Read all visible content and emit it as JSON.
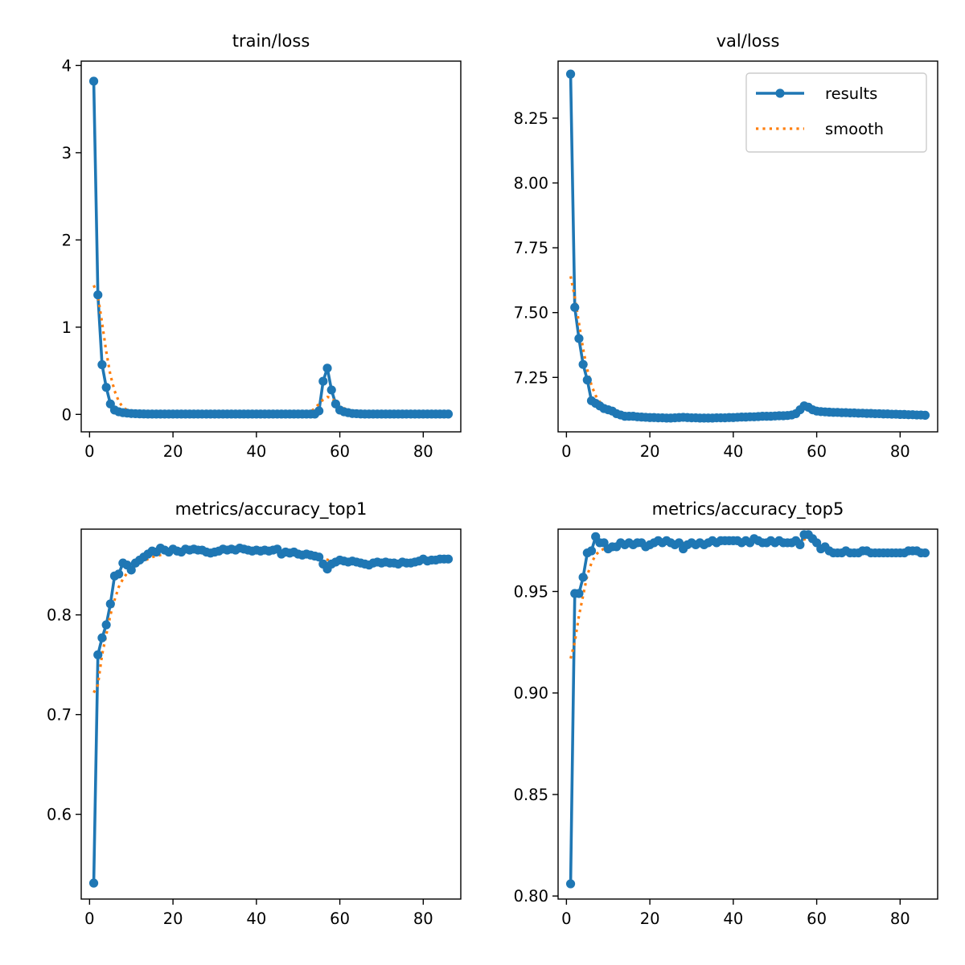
{
  "figure": {
    "background": "#ffffff"
  },
  "colors": {
    "results": "#1f77b4",
    "smooth": "#ff7f0e"
  },
  "legend": {
    "placement": "top-right",
    "panel": 1,
    "entries": [
      "results",
      "smooth"
    ]
  },
  "chart_data": [
    {
      "type": "line",
      "title": "train/loss",
      "xlabel": "",
      "ylabel": "",
      "xlim": [
        -2,
        89
      ],
      "ylim": [
        -0.2,
        4.05
      ],
      "xticks": [
        0,
        20,
        40,
        60,
        80
      ],
      "xtick_labels": [
        "0",
        "20",
        "40",
        "60",
        "80"
      ],
      "yticks": [
        0,
        1,
        2,
        3,
        4
      ],
      "ytick_labels": [
        "0",
        "1",
        "2",
        "3",
        "4"
      ],
      "grid": false,
      "series": [
        {
          "name": "results",
          "style": "line-markers",
          "x": [
            1,
            2,
            3,
            4,
            5,
            6,
            7,
            8,
            9,
            10,
            11,
            12,
            13,
            14,
            15,
            16,
            17,
            18,
            19,
            20,
            21,
            22,
            23,
            24,
            25,
            26,
            27,
            28,
            29,
            30,
            31,
            32,
            33,
            34,
            35,
            36,
            37,
            38,
            39,
            40,
            41,
            42,
            43,
            44,
            45,
            46,
            47,
            48,
            49,
            50,
            51,
            52,
            53,
            54,
            55,
            56,
            57,
            58,
            59,
            60,
            61,
            62,
            63,
            64,
            65,
            66,
            67,
            68,
            69,
            70,
            71,
            72,
            73,
            74,
            75,
            76,
            77,
            78,
            79,
            80,
            81,
            82,
            83,
            84,
            85,
            86
          ],
          "y": [
            3.82,
            1.37,
            0.57,
            0.31,
            0.12,
            0.05,
            0.03,
            0.02,
            0.015,
            0.01,
            0.008,
            0.006,
            0.005,
            0.004,
            0.004,
            0.004,
            0.004,
            0.004,
            0.004,
            0.004,
            0.004,
            0.004,
            0.004,
            0.004,
            0.004,
            0.004,
            0.004,
            0.004,
            0.004,
            0.004,
            0.004,
            0.004,
            0.004,
            0.004,
            0.004,
            0.004,
            0.004,
            0.004,
            0.004,
            0.004,
            0.004,
            0.004,
            0.004,
            0.004,
            0.004,
            0.004,
            0.004,
            0.004,
            0.004,
            0.004,
            0.004,
            0.004,
            0.004,
            0.004,
            0.04,
            0.38,
            0.53,
            0.28,
            0.12,
            0.05,
            0.03,
            0.02,
            0.01,
            0.008,
            0.005,
            0.004,
            0.004,
            0.004,
            0.004,
            0.004,
            0.004,
            0.004,
            0.004,
            0.004,
            0.004,
            0.004,
            0.004,
            0.004,
            0.004,
            0.004,
            0.004,
            0.004,
            0.004,
            0.004,
            0.004,
            0.004
          ]
        },
        {
          "name": "smooth",
          "style": "dotted",
          "x": [
            1,
            2,
            3,
            4,
            5,
            6,
            7,
            8,
            9,
            10,
            12,
            15,
            20,
            30,
            40,
            50,
            52,
            53,
            54,
            55,
            56,
            57,
            58,
            59,
            60,
            61,
            62,
            63,
            64,
            65,
            66,
            70,
            80,
            86
          ],
          "y": [
            1.48,
            1.36,
            1.05,
            0.72,
            0.45,
            0.27,
            0.15,
            0.08,
            0.05,
            0.03,
            0.015,
            0.008,
            0.005,
            0.004,
            0.004,
            0.004,
            0.01,
            0.03,
            0.07,
            0.12,
            0.17,
            0.2,
            0.19,
            0.14,
            0.1,
            0.07,
            0.05,
            0.03,
            0.02,
            0.015,
            0.01,
            0.006,
            0.004,
            0.004
          ]
        }
      ]
    },
    {
      "type": "line",
      "title": "val/loss",
      "xlabel": "",
      "ylabel": "",
      "xlim": [
        -2,
        89
      ],
      "ylim": [
        7.04,
        8.47
      ],
      "xticks": [
        0,
        20,
        40,
        60,
        80
      ],
      "xtick_labels": [
        "0",
        "20",
        "40",
        "60",
        "80"
      ],
      "yticks": [
        7.25,
        7.5,
        7.75,
        8.0,
        8.25
      ],
      "ytick_labels": [
        "7.25",
        "7.50",
        "7.75",
        "8.00",
        "8.25"
      ],
      "grid": false,
      "series": [
        {
          "name": "results",
          "style": "line-markers",
          "x": [
            1,
            2,
            3,
            4,
            5,
            6,
            7,
            8,
            9,
            10,
            11,
            12,
            13,
            14,
            15,
            16,
            17,
            18,
            19,
            20,
            21,
            22,
            23,
            24,
            25,
            26,
            27,
            28,
            29,
            30,
            31,
            32,
            33,
            34,
            35,
            36,
            37,
            38,
            39,
            40,
            41,
            42,
            43,
            44,
            45,
            46,
            47,
            48,
            49,
            50,
            51,
            52,
            53,
            54,
            55,
            56,
            57,
            58,
            59,
            60,
            61,
            62,
            63,
            64,
            65,
            66,
            67,
            68,
            69,
            70,
            71,
            72,
            73,
            74,
            75,
            76,
            77,
            78,
            79,
            80,
            81,
            82,
            83,
            84,
            85,
            86
          ],
          "y": [
            8.42,
            7.52,
            7.4,
            7.3,
            7.24,
            7.16,
            7.15,
            7.14,
            7.13,
            7.125,
            7.12,
            7.11,
            7.105,
            7.1,
            7.1,
            7.1,
            7.098,
            7.097,
            7.096,
            7.095,
            7.095,
            7.094,
            7.094,
            7.093,
            7.093,
            7.094,
            7.095,
            7.096,
            7.095,
            7.094,
            7.094,
            7.093,
            7.093,
            7.093,
            7.093,
            7.094,
            7.094,
            7.094,
            7.095,
            7.095,
            7.096,
            7.097,
            7.097,
            7.098,
            7.098,
            7.099,
            7.1,
            7.1,
            7.1,
            7.101,
            7.102,
            7.102,
            7.103,
            7.105,
            7.11,
            7.125,
            7.14,
            7.135,
            7.125,
            7.12,
            7.118,
            7.117,
            7.116,
            7.115,
            7.115,
            7.114,
            7.114,
            7.113,
            7.113,
            7.112,
            7.112,
            7.111,
            7.111,
            7.11,
            7.11,
            7.109,
            7.109,
            7.108,
            7.108,
            7.107,
            7.107,
            7.106,
            7.106,
            7.105,
            7.105,
            7.104
          ]
        },
        {
          "name": "smooth",
          "style": "dotted",
          "x": [
            1,
            2,
            3,
            4,
            5,
            6,
            7,
            8,
            9,
            10,
            12,
            15,
            20,
            30,
            40,
            50,
            54,
            56,
            57,
            58,
            60,
            62,
            66,
            70,
            80,
            86
          ],
          "y": [
            7.64,
            7.56,
            7.46,
            7.36,
            7.28,
            7.22,
            7.18,
            7.155,
            7.14,
            7.13,
            7.115,
            7.105,
            7.097,
            7.095,
            7.094,
            7.099,
            7.106,
            7.118,
            7.128,
            7.13,
            7.124,
            7.118,
            7.115,
            7.113,
            7.107,
            7.104
          ]
        }
      ]
    },
    {
      "type": "line",
      "title": "metrics/accuracy_top1",
      "xlabel": "",
      "ylabel": "",
      "xlim": [
        -2,
        89
      ],
      "ylim": [
        0.515,
        0.886
      ],
      "xticks": [
        0,
        20,
        40,
        60,
        80
      ],
      "xtick_labels": [
        "0",
        "20",
        "40",
        "60",
        "80"
      ],
      "yticks": [
        0.6,
        0.7,
        0.8
      ],
      "ytick_labels": [
        "0.6",
        "0.7",
        "0.8"
      ],
      "grid": false,
      "series": [
        {
          "name": "results",
          "style": "line-markers",
          "x": [
            1,
            2,
            3,
            4,
            5,
            6,
            7,
            8,
            9,
            10,
            11,
            12,
            13,
            14,
            15,
            16,
            17,
            18,
            19,
            20,
            21,
            22,
            23,
            24,
            25,
            26,
            27,
            28,
            29,
            30,
            31,
            32,
            33,
            34,
            35,
            36,
            37,
            38,
            39,
            40,
            41,
            42,
            43,
            44,
            45,
            46,
            47,
            48,
            49,
            50,
            51,
            52,
            53,
            54,
            55,
            56,
            57,
            58,
            59,
            60,
            61,
            62,
            63,
            64,
            65,
            66,
            67,
            68,
            69,
            70,
            71,
            72,
            73,
            74,
            75,
            76,
            77,
            78,
            79,
            80,
            81,
            82,
            83,
            84,
            85,
            86
          ],
          "y": [
            0.531,
            0.76,
            0.777,
            0.79,
            0.811,
            0.839,
            0.841,
            0.852,
            0.85,
            0.845,
            0.852,
            0.855,
            0.858,
            0.861,
            0.864,
            0.863,
            0.867,
            0.865,
            0.863,
            0.866,
            0.864,
            0.863,
            0.866,
            0.865,
            0.866,
            0.865,
            0.865,
            0.863,
            0.862,
            0.863,
            0.864,
            0.866,
            0.865,
            0.866,
            0.865,
            0.867,
            0.866,
            0.865,
            0.864,
            0.865,
            0.864,
            0.865,
            0.864,
            0.865,
            0.866,
            0.861,
            0.863,
            0.862,
            0.863,
            0.861,
            0.86,
            0.861,
            0.86,
            0.859,
            0.858,
            0.851,
            0.846,
            0.851,
            0.853,
            0.855,
            0.854,
            0.853,
            0.854,
            0.853,
            0.852,
            0.851,
            0.85,
            0.852,
            0.853,
            0.852,
            0.853,
            0.852,
            0.852,
            0.851,
            0.853,
            0.852,
            0.852,
            0.853,
            0.854,
            0.856,
            0.854,
            0.855,
            0.855,
            0.856,
            0.856,
            0.856
          ]
        },
        {
          "name": "smooth",
          "style": "dotted",
          "x": [
            1,
            2,
            3,
            4,
            5,
            6,
            7,
            8,
            9,
            10,
            12,
            15,
            20,
            30,
            40,
            50,
            55,
            58,
            60,
            65,
            70,
            80,
            86
          ],
          "y": [
            0.722,
            0.73,
            0.76,
            0.78,
            0.8,
            0.815,
            0.828,
            0.836,
            0.842,
            0.846,
            0.852,
            0.858,
            0.863,
            0.864,
            0.865,
            0.862,
            0.858,
            0.854,
            0.853,
            0.852,
            0.852,
            0.854,
            0.856
          ]
        }
      ]
    },
    {
      "type": "line",
      "title": "metrics/accuracy_top5",
      "xlabel": "",
      "ylabel": "",
      "xlim": [
        -2,
        89
      ],
      "ylim": [
        0.7985,
        0.9807
      ],
      "xticks": [
        0,
        20,
        40,
        60,
        80
      ],
      "xtick_labels": [
        "0",
        "20",
        "40",
        "60",
        "80"
      ],
      "yticks": [
        0.8,
        0.85,
        0.9,
        0.95
      ],
      "ytick_labels": [
        "0.80",
        "0.85",
        "0.90",
        "0.95"
      ],
      "grid": false,
      "series": [
        {
          "name": "results",
          "style": "line-markers",
          "x": [
            1,
            2,
            3,
            4,
            5,
            6,
            7,
            8,
            9,
            10,
            11,
            12,
            13,
            14,
            15,
            16,
            17,
            18,
            19,
            20,
            21,
            22,
            23,
            24,
            25,
            26,
            27,
            28,
            29,
            30,
            31,
            32,
            33,
            34,
            35,
            36,
            37,
            38,
            39,
            40,
            41,
            42,
            43,
            44,
            45,
            46,
            47,
            48,
            49,
            50,
            51,
            52,
            53,
            54,
            55,
            56,
            57,
            58,
            59,
            60,
            61,
            62,
            63,
            64,
            65,
            66,
            67,
            68,
            69,
            70,
            71,
            72,
            73,
            74,
            75,
            76,
            77,
            78,
            79,
            80,
            81,
            82,
            83,
            84,
            85,
            86
          ],
          "y": [
            0.806,
            0.949,
            0.949,
            0.957,
            0.969,
            0.97,
            0.977,
            0.974,
            0.974,
            0.971,
            0.972,
            0.972,
            0.974,
            0.973,
            0.974,
            0.973,
            0.974,
            0.974,
            0.972,
            0.973,
            0.974,
            0.975,
            0.974,
            0.975,
            0.974,
            0.973,
            0.974,
            0.971,
            0.973,
            0.974,
            0.973,
            0.974,
            0.973,
            0.974,
            0.975,
            0.974,
            0.975,
            0.975,
            0.975,
            0.975,
            0.975,
            0.974,
            0.975,
            0.974,
            0.976,
            0.975,
            0.974,
            0.974,
            0.975,
            0.974,
            0.975,
            0.974,
            0.974,
            0.974,
            0.975,
            0.973,
            0.978,
            0.978,
            0.976,
            0.974,
            0.971,
            0.972,
            0.97,
            0.969,
            0.969,
            0.969,
            0.97,
            0.969,
            0.969,
            0.969,
            0.97,
            0.97,
            0.969,
            0.969,
            0.969,
            0.969,
            0.969,
            0.969,
            0.969,
            0.969,
            0.969,
            0.97,
            0.97,
            0.97,
            0.969,
            0.969
          ]
        },
        {
          "name": "smooth",
          "style": "dotted",
          "x": [
            1,
            2,
            3,
            4,
            5,
            6,
            7,
            8,
            9,
            10,
            12,
            15,
            20,
            30,
            40,
            50,
            55,
            58,
            60,
            62,
            64,
            70,
            80,
            86
          ],
          "y": [
            0.917,
            0.925,
            0.938,
            0.948,
            0.958,
            0.964,
            0.968,
            0.97,
            0.971,
            0.972,
            0.972,
            0.973,
            0.973,
            0.974,
            0.975,
            0.975,
            0.975,
            0.976,
            0.974,
            0.972,
            0.97,
            0.969,
            0.969,
            0.969
          ]
        }
      ]
    }
  ]
}
